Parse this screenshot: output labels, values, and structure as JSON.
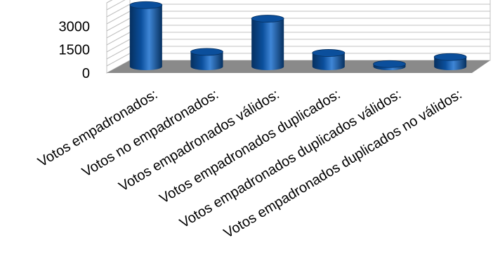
{
  "chart_data": {
    "type": "bar",
    "style": "3d-cylinder",
    "categories": [
      "Votos empadronados:",
      "Votos no empadronados:",
      "Votos empadronados válidos:",
      "Votos empadronados duplicados:",
      "Votos empadronados duplicados válidos:",
      "Votos empadronados duplicados no válidos:"
    ],
    "values": [
      3950,
      950,
      3080,
      880,
      170,
      620
    ],
    "yticks": [
      "3000",
      "1500",
      "0"
    ],
    "ylim": [
      0,
      4500
    ],
    "grid": true,
    "legend": "none",
    "colors": {
      "bar": "#0b4f9c",
      "bar_dark": "#06305f",
      "bar_light": "#3f86d6",
      "floor": "#8a8a8a",
      "grid": "#c0c0c0"
    }
  }
}
